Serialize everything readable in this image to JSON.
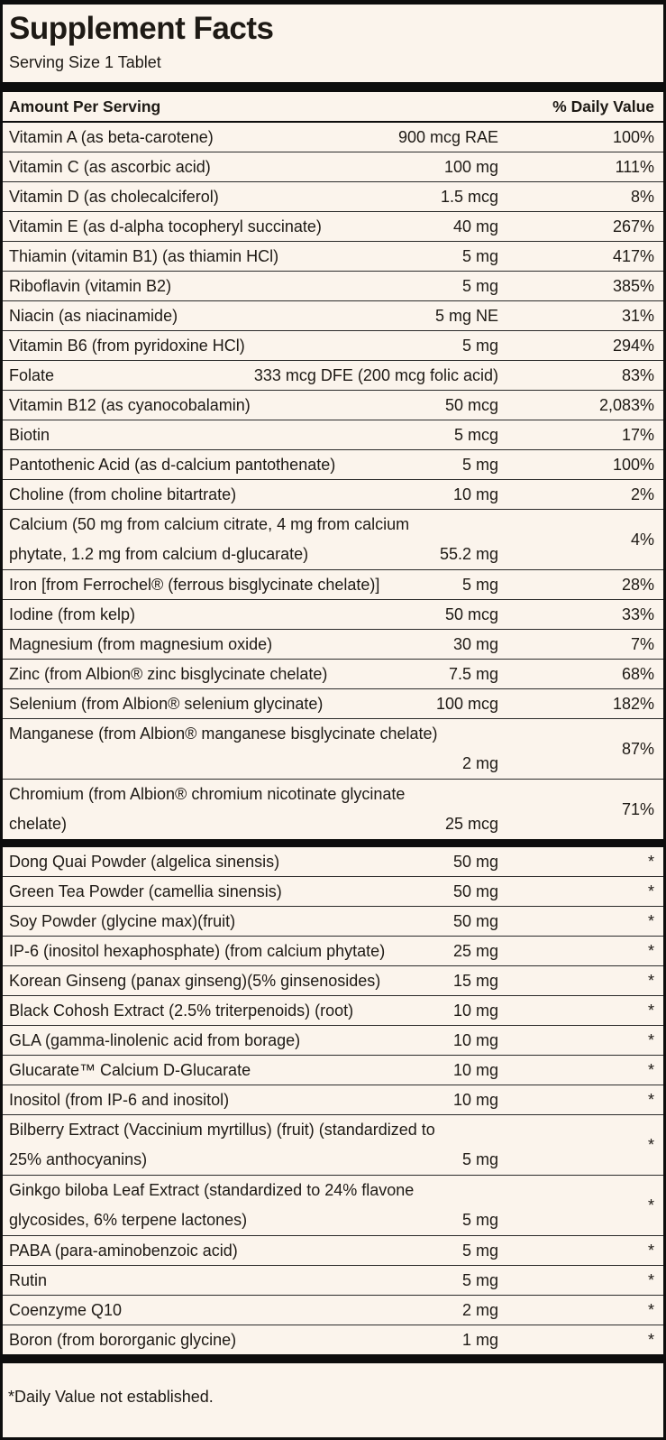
{
  "label": {
    "title": "Supplement Facts",
    "serving_size": "Serving Size 1 Tablet",
    "amount_header": "Amount Per Serving",
    "daily_value_header": "% Daily Value",
    "footnote": "*Daily Value not established."
  },
  "colors": {
    "background": "#fbf4ec",
    "text": "#1e1a15",
    "rule": "#0d0d0d"
  },
  "sections": [
    {
      "rows": [
        {
          "name": "Vitamin A (as beta-carotene)",
          "amount": "900 mcg RAE",
          "dv": "100%"
        },
        {
          "name": "Vitamin C (as ascorbic acid)",
          "amount": "100 mg",
          "dv": "111%"
        },
        {
          "name": "Vitamin D (as cholecalciferol)",
          "amount": "1.5 mcg",
          "dv": "8%"
        },
        {
          "name": "Vitamin E (as d-alpha tocopheryl succinate)",
          "amount": "40 mg",
          "dv": "267%"
        },
        {
          "name": "Thiamin (vitamin B1) (as thiamin HCl)",
          "amount": "5 mg",
          "dv": "417%"
        },
        {
          "name": "Riboflavin (vitamin B2)",
          "amount": "5 mg",
          "dv": "385%"
        },
        {
          "name": "Niacin (as niacinamide)",
          "amount": "5 mg NE",
          "dv": "31%"
        },
        {
          "name": "Vitamin B6 (from pyridoxine HCl)",
          "amount": "5 mg",
          "dv": "294%"
        },
        {
          "name": "Folate",
          "amount": "333 mcg DFE (200 mcg folic acid)",
          "dv": "83%"
        },
        {
          "name": "Vitamin B12 (as cyanocobalamin)",
          "amount": "50 mcg",
          "dv": "2,083%"
        },
        {
          "name": "Biotin",
          "amount": "5 mcg",
          "dv": "17%"
        },
        {
          "name": "Pantothenic Acid (as d-calcium pantothenate)",
          "amount": "5 mg",
          "dv": "100%"
        },
        {
          "name": "Choline (from choline bitartrate)",
          "amount": "10 mg",
          "dv": "2%"
        },
        {
          "name": "Calcium (50 mg from calcium citrate, 4 mg from calcium",
          "name2": "phytate, 1.2 mg from calcium d-glucarate)",
          "amount": "55.2 mg",
          "dv": "4%"
        },
        {
          "name": "Iron [from Ferrochel® (ferrous bisglycinate chelate)]",
          "amount": "5 mg",
          "dv": "28%"
        },
        {
          "name": "Iodine (from kelp)",
          "amount": "50 mcg",
          "dv": "33%"
        },
        {
          "name": "Magnesium (from magnesium oxide)",
          "amount": "30 mg",
          "dv": "7%"
        },
        {
          "name": "Zinc (from Albion® zinc bisglycinate chelate)",
          "amount": "7.5 mg",
          "dv": "68%"
        },
        {
          "name": "Selenium (from Albion® selenium glycinate)",
          "amount": "100 mcg",
          "dv": "182%"
        },
        {
          "name": "Manganese (from Albion® manganese bisglycinate chelate)",
          "name2": "",
          "amount": "2 mg",
          "dv": "87%"
        },
        {
          "name": "Chromium (from Albion® chromium nicotinate glycinate",
          "name2": "chelate)",
          "amount": "25 mcg",
          "dv": "71%"
        }
      ]
    },
    {
      "rows": [
        {
          "name": "Dong Quai Powder (algelica sinensis)",
          "amount": "50 mg",
          "dv": "*"
        },
        {
          "name": "Green Tea Powder (camellia sinensis)",
          "amount": "50 mg",
          "dv": "*"
        },
        {
          "name": "Soy Powder (glycine max)(fruit)",
          "amount": "50 mg",
          "dv": "*"
        },
        {
          "name": "IP-6 (inositol hexaphosphate) (from calcium phytate)",
          "amount": "25 mg",
          "dv": "*"
        },
        {
          "name": "Korean Ginseng (panax ginseng)(5% ginsenosides)",
          "amount": "15 mg",
          "dv": "*"
        },
        {
          "name": "Black Cohosh Extract (2.5% triterpenoids) (root)",
          "amount": "10 mg",
          "dv": "*"
        },
        {
          "name": "GLA (gamma-linolenic acid from borage)",
          "amount": "10 mg",
          "dv": "*"
        },
        {
          "name": "Glucarate™ Calcium D-Glucarate",
          "amount": "10 mg",
          "dv": "*"
        },
        {
          "name": "Inositol (from IP-6 and inositol)",
          "amount": "10 mg",
          "dv": "*"
        },
        {
          "name": "Bilberry Extract (Vaccinium myrtillus) (fruit) (standardized to",
          "name2": "25% anthocyanins)",
          "amount": "5 mg",
          "dv": "*"
        },
        {
          "name": "Ginkgo biloba Leaf Extract (standardized to 24% flavone",
          "name2": "glycosides, 6% terpene lactones)",
          "amount": "5 mg",
          "dv": "*"
        },
        {
          "name": "PABA (para-aminobenzoic acid)",
          "amount": "5 mg",
          "dv": "*"
        },
        {
          "name": "Rutin",
          "amount": "5 mg",
          "dv": "*"
        },
        {
          "name": "Coenzyme Q10",
          "amount": "2 mg",
          "dv": "*"
        },
        {
          "name": "Boron (from bororganic glycine)",
          "amount": "1 mg",
          "dv": "*"
        }
      ]
    }
  ]
}
